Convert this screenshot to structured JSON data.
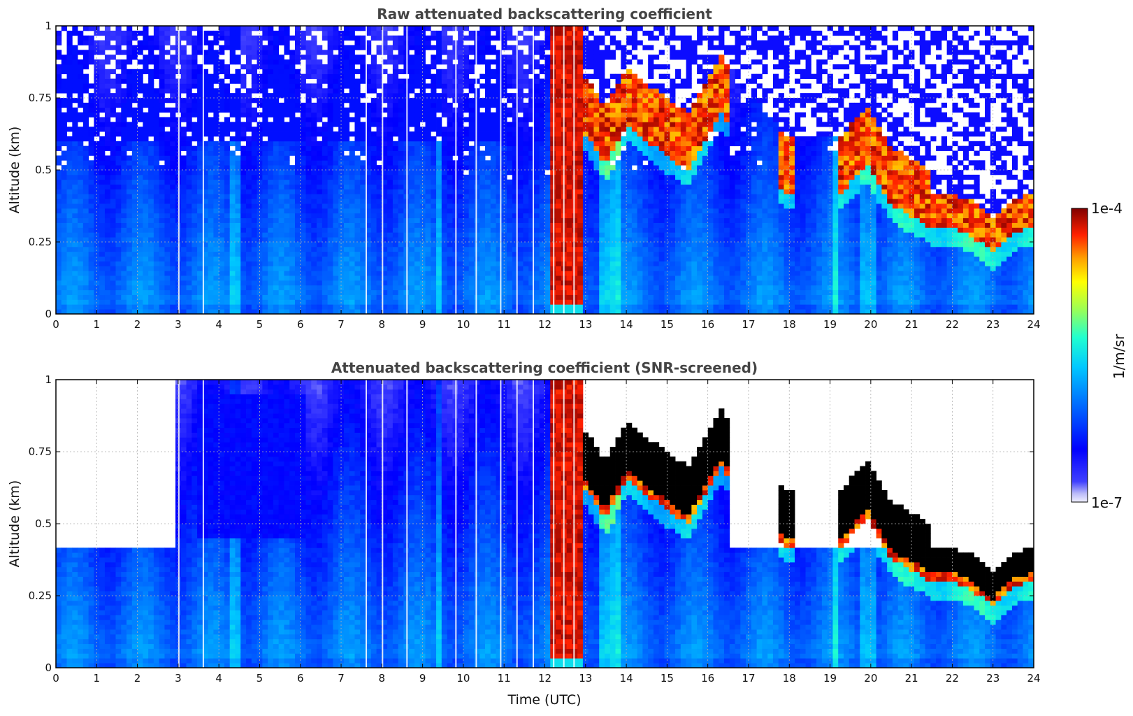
{
  "chart_data": [
    {
      "type": "heatmap",
      "title": "Raw attenuated backscattering coefficient",
      "xlabel": "",
      "ylabel": "Altitude (km)",
      "xlim": [
        0,
        24
      ],
      "ylim": [
        0,
        1
      ],
      "xticks": [
        "0",
        "1",
        "2",
        "3",
        "4",
        "5",
        "6",
        "7",
        "8",
        "9",
        "10",
        "11",
        "12",
        "13",
        "14",
        "15",
        "16",
        "17",
        "18",
        "19",
        "20",
        "21",
        "22",
        "23",
        "24"
      ],
      "yticks": [
        "0",
        "0.25",
        "0.5",
        "0.75",
        "1"
      ],
      "grid": true,
      "screened": false
    },
    {
      "type": "heatmap",
      "title": "Attenuated backscattering coefficient (SNR-screened)",
      "xlabel": "Time (UTC)",
      "ylabel": "Altitude (km)",
      "xlim": [
        0,
        24
      ],
      "ylim": [
        0,
        1
      ],
      "xticks": [
        "0",
        "1",
        "2",
        "3",
        "4",
        "5",
        "6",
        "7",
        "8",
        "9",
        "10",
        "11",
        "12",
        "13",
        "14",
        "15",
        "16",
        "17",
        "18",
        "19",
        "20",
        "21",
        "22",
        "23",
        "24"
      ],
      "yticks": [
        "0",
        "0.25",
        "0.5",
        "0.75",
        "1"
      ],
      "grid": true,
      "screened": true
    }
  ],
  "colorbar": {
    "label": "1/m/sr",
    "max_label": "1e-4",
    "min_label": "1e-7",
    "scale": "log",
    "range": [
      1e-07,
      0.0001
    ]
  },
  "features": {
    "fog_bands": [
      [
        12.1,
        12.9
      ]
    ],
    "cloud_base_km": [
      [
        13.0,
        0.62
      ],
      [
        13.5,
        0.52
      ],
      [
        14.0,
        0.66
      ],
      [
        14.5,
        0.6
      ],
      [
        15.0,
        0.55
      ],
      [
        15.5,
        0.5
      ],
      [
        16.0,
        0.62
      ],
      [
        16.3,
        0.7
      ],
      [
        17.9,
        0.42
      ],
      [
        19.3,
        0.42
      ],
      [
        19.9,
        0.52
      ],
      [
        20.5,
        0.38
      ],
      [
        21.0,
        0.34
      ],
      [
        21.5,
        0.3
      ],
      [
        22.0,
        0.3
      ],
      [
        22.5,
        0.27
      ],
      [
        23.0,
        0.21
      ],
      [
        23.5,
        0.28
      ],
      [
        24.0,
        0.3
      ]
    ]
  }
}
